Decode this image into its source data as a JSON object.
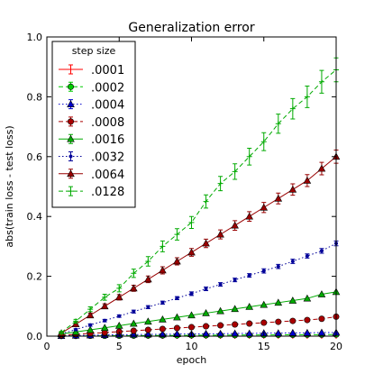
{
  "chart_data": {
    "type": "line",
    "title": "Generalization error",
    "xlabel": "epoch",
    "ylabel": "abs(train loss - test loss)",
    "xlim": [
      0,
      20
    ],
    "ylim": [
      0,
      1.0
    ],
    "x_ticks": [
      0,
      5,
      10,
      15,
      20
    ],
    "x_tick_labels": [
      "0",
      "5",
      "10",
      "15",
      "20"
    ],
    "y_ticks": [
      0,
      0.2,
      0.4,
      0.6,
      0.8,
      1.0
    ],
    "y_tick_labels": [
      "0.0",
      "0.2",
      "0.4",
      "0.6",
      "0.8",
      "1.0"
    ],
    "grid": false,
    "legend": {
      "title": "step size",
      "placement": "top-left"
    },
    "x": [
      1,
      2,
      3,
      4,
      5,
      6,
      7,
      8,
      9,
      10,
      11,
      12,
      13,
      14,
      15,
      16,
      17,
      18,
      19,
      20
    ],
    "series": [
      {
        "name": ".0001",
        "color": "#ff0000",
        "marker": "plus",
        "linestyle": "solid",
        "values": [
          0,
          0,
          0,
          0,
          0,
          0,
          0,
          0,
          0,
          0,
          0,
          0,
          0,
          0,
          0,
          0,
          0,
          0,
          0,
          0
        ],
        "errors": [
          0,
          0,
          0,
          0,
          0,
          0,
          0,
          0,
          0,
          0,
          0,
          0,
          0,
          0,
          0,
          0,
          0,
          0,
          0,
          0
        ]
      },
      {
        "name": ".0002",
        "color": "#00cc00",
        "marker": "circle",
        "linestyle": "dashed",
        "values": [
          0.0005,
          0.0008,
          0.001,
          0.0012,
          0.0015,
          0.0018,
          0.002,
          0.0022,
          0.0025,
          0.0028,
          0.003,
          0.0033,
          0.0035,
          0.0038,
          0.004,
          0.0043,
          0.0046,
          0.0048,
          0.005,
          0.0053
        ],
        "errors": [
          0,
          0,
          0,
          0,
          0,
          0,
          0,
          0,
          0,
          0,
          0,
          0,
          0,
          0,
          0,
          0,
          0,
          0,
          0,
          0
        ]
      },
      {
        "name": ".0004",
        "color": "#0000cc",
        "marker": "triangle",
        "linestyle": "dotted",
        "values": [
          0.001,
          0.002,
          0.003,
          0.004,
          0.005,
          0.005,
          0.006,
          0.006,
          0.007,
          0.007,
          0.008,
          0.008,
          0.009,
          0.009,
          0.01,
          0.01,
          0.011,
          0.011,
          0.012,
          0.012
        ],
        "errors": [
          0,
          0,
          0,
          0,
          0,
          0,
          0,
          0,
          0,
          0,
          0,
          0,
          0,
          0,
          0,
          0,
          0,
          0,
          0,
          0
        ]
      },
      {
        "name": ".0008",
        "color": "#aa0000",
        "marker": "circle",
        "linestyle": "dashed",
        "values": [
          0.003,
          0.006,
          0.009,
          0.012,
          0.015,
          0.018,
          0.021,
          0.024,
          0.027,
          0.03,
          0.033,
          0.036,
          0.039,
          0.042,
          0.045,
          0.048,
          0.051,
          0.054,
          0.058,
          0.065
        ],
        "errors": [
          0,
          0,
          0,
          0,
          0,
          0,
          0,
          0,
          0,
          0,
          0,
          0,
          0,
          0,
          0,
          0,
          0,
          0,
          0,
          0
        ]
      },
      {
        "name": ".0016",
        "color": "#00aa00",
        "marker": "triangle",
        "linestyle": "solid",
        "values": [
          0.007,
          0.014,
          0.021,
          0.028,
          0.035,
          0.042,
          0.049,
          0.056,
          0.063,
          0.07,
          0.077,
          0.084,
          0.091,
          0.098,
          0.105,
          0.112,
          0.119,
          0.126,
          0.14,
          0.148
        ],
        "errors": [
          0,
          0,
          0,
          0,
          0,
          0,
          0,
          0,
          0,
          0,
          0,
          0,
          0,
          0,
          0,
          0,
          0,
          0,
          0,
          0
        ]
      },
      {
        "name": ".0032",
        "color": "#000099",
        "marker": "dot",
        "linestyle": "dotted",
        "values": [
          0.008,
          0.022,
          0.037,
          0.052,
          0.067,
          0.082,
          0.097,
          0.112,
          0.127,
          0.142,
          0.158,
          0.173,
          0.188,
          0.203,
          0.218,
          0.233,
          0.25,
          0.268,
          0.285,
          0.31
        ],
        "errors": [
          0.003,
          0.003,
          0.004,
          0.004,
          0.004,
          0.005,
          0.005,
          0.005,
          0.005,
          0.006,
          0.006,
          0.006,
          0.006,
          0.006,
          0.007,
          0.007,
          0.007,
          0.007,
          0.008,
          0.008
        ]
      },
      {
        "name": ".0064",
        "color": "#990000",
        "marker": "triangle",
        "linestyle": "solid",
        "values": [
          0.01,
          0.04,
          0.07,
          0.1,
          0.13,
          0.16,
          0.19,
          0.22,
          0.25,
          0.28,
          0.31,
          0.34,
          0.37,
          0.4,
          0.43,
          0.46,
          0.49,
          0.52,
          0.56,
          0.6
        ],
        "errors": [
          0.004,
          0.006,
          0.007,
          0.008,
          0.009,
          0.01,
          0.011,
          0.012,
          0.012,
          0.013,
          0.014,
          0.015,
          0.016,
          0.016,
          0.017,
          0.018,
          0.019,
          0.02,
          0.021,
          0.022
        ]
      },
      {
        "name": ".0128",
        "color": "#00aa00",
        "marker": "plus",
        "linestyle": "dashed",
        "values": [
          0.012,
          0.05,
          0.09,
          0.13,
          0.16,
          0.21,
          0.25,
          0.3,
          0.34,
          0.38,
          0.45,
          0.51,
          0.55,
          0.6,
          0.65,
          0.71,
          0.76,
          0.8,
          0.85,
          0.89
        ],
        "errors": [
          0.004,
          0.006,
          0.008,
          0.01,
          0.012,
          0.014,
          0.016,
          0.018,
          0.019,
          0.02,
          0.022,
          0.024,
          0.026,
          0.028,
          0.03,
          0.032,
          0.034,
          0.036,
          0.038,
          0.04
        ]
      }
    ]
  }
}
